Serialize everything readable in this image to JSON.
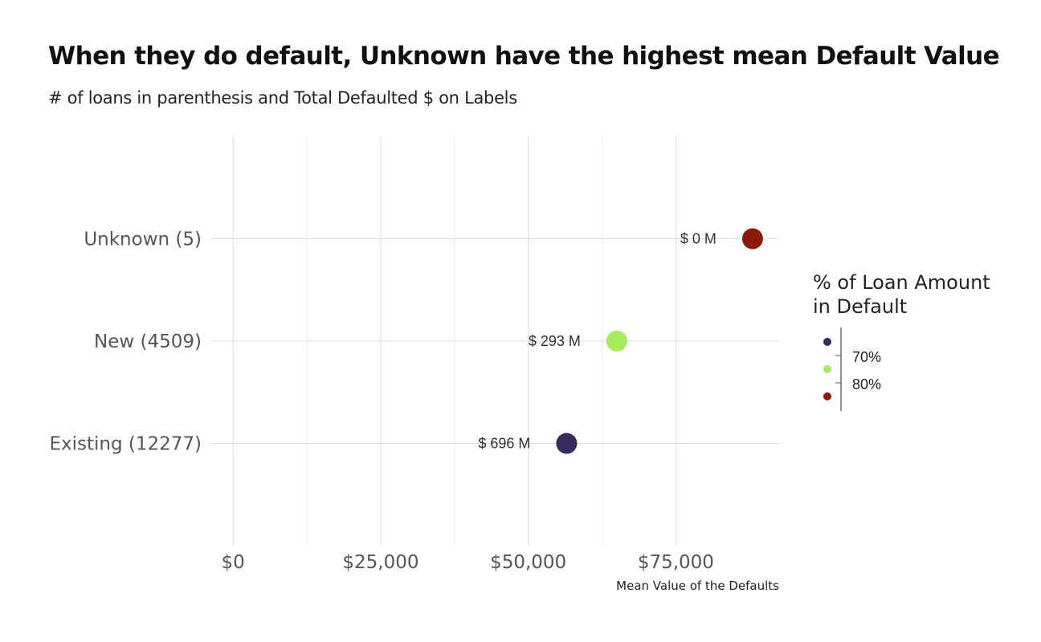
{
  "chart_data": {
    "type": "scatter",
    "title": "When they do default, Unknown have the highest mean Default Value",
    "subtitle": "# of loans in parenthesis and Total Defaulted $ on Labels",
    "xlabel": "Mean Value of the Defaults",
    "ylabel": "",
    "xlim": [
      -3700,
      92500
    ],
    "x_ticks": [
      {
        "value": 0,
        "label": "$0"
      },
      {
        "value": 25000,
        "label": "$25,000"
      },
      {
        "value": 50000,
        "label": "$50,000"
      },
      {
        "value": 75000,
        "label": "$75,000"
      }
    ],
    "categories": [
      "Existing (12277)",
      "New (4509)",
      "Unknown (5)"
    ],
    "points": [
      {
        "category": "Unknown (5)",
        "x": 88000,
        "label": "$ 0 M",
        "pct_default": 0.84,
        "color": "#8e1a0a"
      },
      {
        "category": "New (4509)",
        "x": 65000,
        "label": "$ 293 M",
        "pct_default": 0.76,
        "color": "#a6ed5c"
      },
      {
        "category": "Existing (12277)",
        "x": 56500,
        "label": "$ 696 M",
        "pct_default": 0.66,
        "color": "#372a5c"
      }
    ],
    "grid": true,
    "legend": {
      "title_lines": [
        "% of Loan Amount",
        "in Default"
      ],
      "position": "right",
      "colors": [
        "#372a5c",
        "#a6ed5c",
        "#8e1a0a"
      ],
      "tick_labels": [
        "70%",
        "80%"
      ]
    }
  }
}
